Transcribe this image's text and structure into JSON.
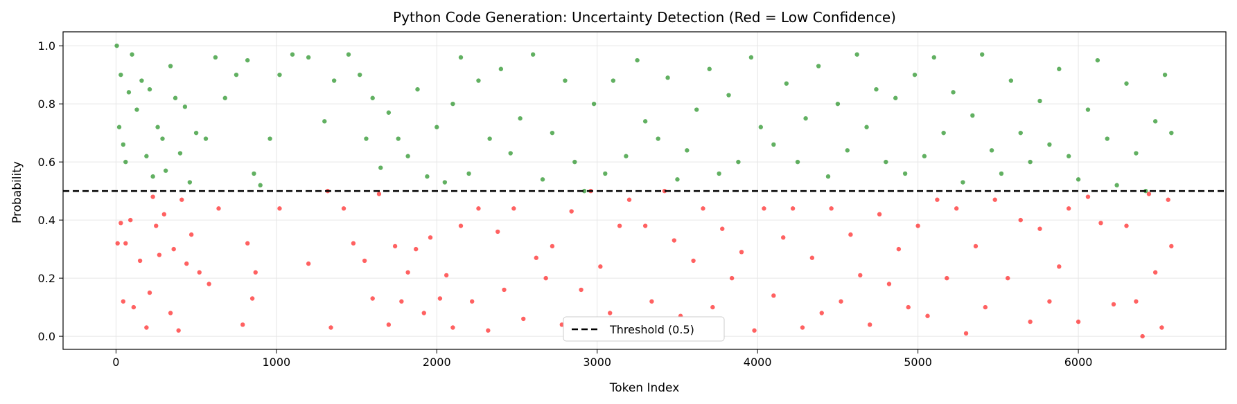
{
  "chart_data": {
    "type": "scatter",
    "title": "Python Code Generation: Uncertainty Detection (Red = Low Confidence)",
    "xlabel": "Token Index",
    "ylabel": "Probability",
    "xlim": [
      -330,
      6920
    ],
    "ylim": [
      -0.045,
      1.048
    ],
    "xticks": [
      0,
      1000,
      2000,
      3000,
      4000,
      5000,
      6000
    ],
    "xtick_labels": [
      "0",
      "1000",
      "2000",
      "3000",
      "4000",
      "5000",
      "6000"
    ],
    "yticks": [
      0.0,
      0.2,
      0.4,
      0.6,
      0.8,
      1.0
    ],
    "ytick_labels": [
      "0.0",
      "0.2",
      "0.4",
      "0.6",
      "0.8",
      "1.0"
    ],
    "grid": true,
    "threshold": {
      "value": 0.5,
      "label": "Threshold (0.5)",
      "style": "dashed",
      "color": "#000000"
    },
    "legend": {
      "position": "lower-center",
      "entries": [
        "Threshold (0.5)"
      ]
    },
    "token_range": [
      0,
      6580
    ],
    "colors": {
      "high_confidence": "#008000",
      "low_confidence": "#ff0000"
    },
    "series": [
      {
        "name": "",
        "color": "#008000",
        "points": [
          [
            5,
            1.0
          ],
          [
            20,
            0.72
          ],
          [
            30,
            0.9
          ],
          [
            45,
            0.66
          ],
          [
            60,
            0.6
          ],
          [
            80,
            0.84
          ],
          [
            100,
            0.97
          ],
          [
            130,
            0.78
          ],
          [
            160,
            0.88
          ],
          [
            190,
            0.62
          ],
          [
            210,
            0.85
          ],
          [
            230,
            0.55
          ],
          [
            260,
            0.72
          ],
          [
            290,
            0.68
          ],
          [
            310,
            0.57
          ],
          [
            340,
            0.93
          ],
          [
            370,
            0.82
          ],
          [
            400,
            0.63
          ],
          [
            430,
            0.79
          ],
          [
            460,
            0.53
          ],
          [
            500,
            0.7
          ],
          [
            560,
            0.68
          ],
          [
            620,
            0.96
          ],
          [
            680,
            0.82
          ],
          [
            750,
            0.9
          ],
          [
            820,
            0.95
          ],
          [
            860,
            0.56
          ],
          [
            900,
            0.52
          ],
          [
            960,
            0.68
          ],
          [
            1020,
            0.9
          ],
          [
            1100,
            0.97
          ],
          [
            1200,
            0.96
          ],
          [
            1300,
            0.74
          ],
          [
            1360,
            0.88
          ],
          [
            1450,
            0.97
          ],
          [
            1520,
            0.9
          ],
          [
            1560,
            0.68
          ],
          [
            1600,
            0.82
          ],
          [
            1650,
            0.58
          ],
          [
            1700,
            0.77
          ],
          [
            1760,
            0.68
          ],
          [
            1820,
            0.62
          ],
          [
            1880,
            0.85
          ],
          [
            1940,
            0.55
          ],
          [
            2000,
            0.72
          ],
          [
            2050,
            0.53
          ],
          [
            2100,
            0.8
          ],
          [
            2150,
            0.96
          ],
          [
            2200,
            0.56
          ],
          [
            2260,
            0.88
          ],
          [
            2330,
            0.68
          ],
          [
            2400,
            0.92
          ],
          [
            2460,
            0.63
          ],
          [
            2520,
            0.75
          ],
          [
            2600,
            0.97
          ],
          [
            2660,
            0.54
          ],
          [
            2720,
            0.7
          ],
          [
            2800,
            0.88
          ],
          [
            2860,
            0.6
          ],
          [
            2920,
            0.5
          ],
          [
            2980,
            0.8
          ],
          [
            3050,
            0.56
          ],
          [
            3100,
            0.88
          ],
          [
            3180,
            0.62
          ],
          [
            3250,
            0.95
          ],
          [
            3300,
            0.74
          ],
          [
            3380,
            0.68
          ],
          [
            3440,
            0.89
          ],
          [
            3500,
            0.54
          ],
          [
            3560,
            0.64
          ],
          [
            3620,
            0.78
          ],
          [
            3700,
            0.92
          ],
          [
            3760,
            0.56
          ],
          [
            3820,
            0.83
          ],
          [
            3880,
            0.6
          ],
          [
            3960,
            0.96
          ],
          [
            4020,
            0.72
          ],
          [
            4100,
            0.66
          ],
          [
            4180,
            0.87
          ],
          [
            4250,
            0.6
          ],
          [
            4300,
            0.75
          ],
          [
            4380,
            0.93
          ],
          [
            4440,
            0.55
          ],
          [
            4500,
            0.8
          ],
          [
            4560,
            0.64
          ],
          [
            4620,
            0.97
          ],
          [
            4680,
            0.72
          ],
          [
            4740,
            0.85
          ],
          [
            4800,
            0.6
          ],
          [
            4860,
            0.82
          ],
          [
            4920,
            0.56
          ],
          [
            4980,
            0.9
          ],
          [
            5040,
            0.62
          ],
          [
            5100,
            0.96
          ],
          [
            5160,
            0.7
          ],
          [
            5220,
            0.84
          ],
          [
            5280,
            0.53
          ],
          [
            5340,
            0.76
          ],
          [
            5400,
            0.97
          ],
          [
            5460,
            0.64
          ],
          [
            5520,
            0.56
          ],
          [
            5580,
            0.88
          ],
          [
            5640,
            0.7
          ],
          [
            5700,
            0.6
          ],
          [
            5760,
            0.81
          ],
          [
            5820,
            0.66
          ],
          [
            5880,
            0.92
          ],
          [
            5940,
            0.62
          ],
          [
            6000,
            0.54
          ],
          [
            6060,
            0.78
          ],
          [
            6120,
            0.95
          ],
          [
            6180,
            0.68
          ],
          [
            6240,
            0.52
          ],
          [
            6300,
            0.87
          ],
          [
            6360,
            0.63
          ],
          [
            6420,
            0.5
          ],
          [
            6480,
            0.74
          ],
          [
            6540,
            0.9
          ],
          [
            6580,
            0.7
          ]
        ]
      },
      {
        "name": "",
        "color": "#ff0000",
        "points": [
          [
            10,
            0.32
          ],
          [
            30,
            0.39
          ],
          [
            45,
            0.12
          ],
          [
            60,
            0.32
          ],
          [
            90,
            0.4
          ],
          [
            110,
            0.1
          ],
          [
            150,
            0.26
          ],
          [
            190,
            0.03
          ],
          [
            210,
            0.15
          ],
          [
            230,
            0.48
          ],
          [
            250,
            0.38
          ],
          [
            270,
            0.28
          ],
          [
            300,
            0.42
          ],
          [
            340,
            0.08
          ],
          [
            360,
            0.3
          ],
          [
            390,
            0.02
          ],
          [
            410,
            0.47
          ],
          [
            440,
            0.25
          ],
          [
            470,
            0.35
          ],
          [
            520,
            0.22
          ],
          [
            580,
            0.18
          ],
          [
            640,
            0.44
          ],
          [
            790,
            0.04
          ],
          [
            820,
            0.32
          ],
          [
            850,
            0.13
          ],
          [
            870,
            0.22
          ],
          [
            1020,
            0.44
          ],
          [
            1200,
            0.25
          ],
          [
            1320,
            0.5
          ],
          [
            1340,
            0.03
          ],
          [
            1420,
            0.44
          ],
          [
            1480,
            0.32
          ],
          [
            1550,
            0.26
          ],
          [
            1600,
            0.13
          ],
          [
            1640,
            0.49
          ],
          [
            1700,
            0.04
          ],
          [
            1740,
            0.31
          ],
          [
            1780,
            0.12
          ],
          [
            1820,
            0.22
          ],
          [
            1870,
            0.3
          ],
          [
            1920,
            0.08
          ],
          [
            1960,
            0.34
          ],
          [
            2020,
            0.13
          ],
          [
            2060,
            0.21
          ],
          [
            2100,
            0.03
          ],
          [
            2150,
            0.38
          ],
          [
            2220,
            0.12
          ],
          [
            2260,
            0.44
          ],
          [
            2320,
            0.02
          ],
          [
            2380,
            0.36
          ],
          [
            2420,
            0.16
          ],
          [
            2480,
            0.44
          ],
          [
            2540,
            0.06
          ],
          [
            2620,
            0.27
          ],
          [
            2680,
            0.2
          ],
          [
            2720,
            0.31
          ],
          [
            2780,
            0.04
          ],
          [
            2840,
            0.43
          ],
          [
            2900,
            0.16
          ],
          [
            2960,
            0.5
          ],
          [
            3020,
            0.24
          ],
          [
            3080,
            0.08
          ],
          [
            3140,
            0.38
          ],
          [
            3200,
            0.47
          ],
          [
            3300,
            0.38
          ],
          [
            3340,
            0.12
          ],
          [
            3420,
            0.5
          ],
          [
            3480,
            0.33
          ],
          [
            3520,
            0.07
          ],
          [
            3600,
            0.26
          ],
          [
            3660,
            0.44
          ],
          [
            3720,
            0.1
          ],
          [
            3780,
            0.37
          ],
          [
            3840,
            0.2
          ],
          [
            3900,
            0.29
          ],
          [
            3980,
            0.02
          ],
          [
            4040,
            0.44
          ],
          [
            4100,
            0.14
          ],
          [
            4160,
            0.34
          ],
          [
            4220,
            0.44
          ],
          [
            4280,
            0.03
          ],
          [
            4340,
            0.27
          ],
          [
            4400,
            0.08
          ],
          [
            4460,
            0.44
          ],
          [
            4520,
            0.12
          ],
          [
            4580,
            0.35
          ],
          [
            4640,
            0.21
          ],
          [
            4700,
            0.04
          ],
          [
            4760,
            0.42
          ],
          [
            4820,
            0.18
          ],
          [
            4880,
            0.3
          ],
          [
            4940,
            0.1
          ],
          [
            5000,
            0.38
          ],
          [
            5060,
            0.07
          ],
          [
            5120,
            0.47
          ],
          [
            5180,
            0.2
          ],
          [
            5240,
            0.44
          ],
          [
            5300,
            0.01
          ],
          [
            5360,
            0.31
          ],
          [
            5420,
            0.1
          ],
          [
            5480,
            0.47
          ],
          [
            5560,
            0.2
          ],
          [
            5640,
            0.4
          ],
          [
            5700,
            0.05
          ],
          [
            5760,
            0.37
          ],
          [
            5820,
            0.12
          ],
          [
            5880,
            0.24
          ],
          [
            5940,
            0.44
          ],
          [
            6000,
            0.05
          ],
          [
            6060,
            0.48
          ],
          [
            6140,
            0.39
          ],
          [
            6220,
            0.11
          ],
          [
            6300,
            0.38
          ],
          [
            6360,
            0.12
          ],
          [
            6400,
            0.0
          ],
          [
            6440,
            0.49
          ],
          [
            6480,
            0.22
          ],
          [
            6520,
            0.03
          ],
          [
            6560,
            0.47
          ],
          [
            6580,
            0.31
          ]
        ]
      }
    ]
  }
}
